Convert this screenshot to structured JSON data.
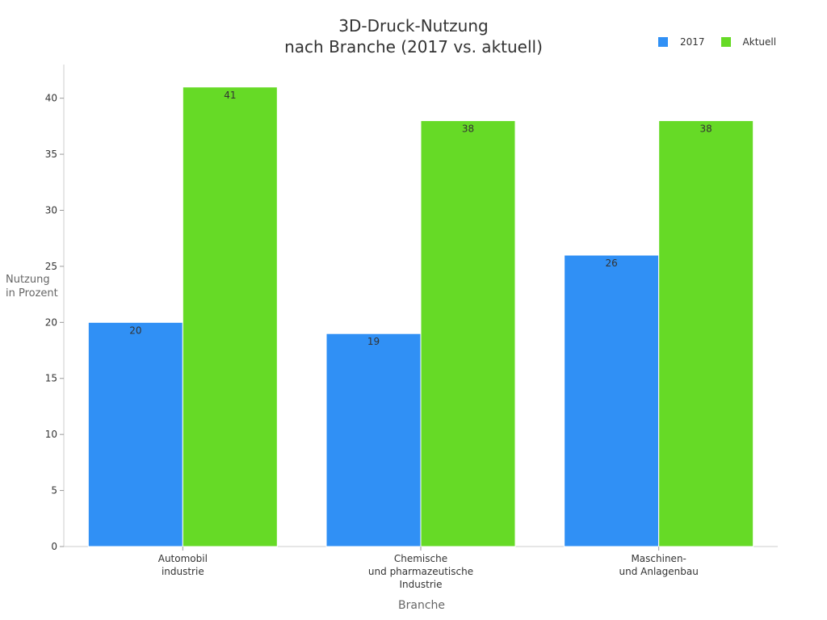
{
  "colors": {
    "series_2017": "#3090f5",
    "series_aktuell": "#66da26",
    "axis": "#cccccc",
    "text": "#333333"
  },
  "chart_data": {
    "type": "bar",
    "title_line1": "3D-Druck-Nutzung",
    "title_line2": "nach Branche (2017 vs. aktuell)",
    "xlabel": "Branche",
    "ylabel_line1": "Nutzung",
    "ylabel_line2": "in Prozent",
    "categories": [
      [
        "Automobil",
        "industrie"
      ],
      [
        "Chemische",
        "und pharmazeutische",
        "Industrie"
      ],
      [
        "Maschinen-",
        "und Anlagenbau"
      ]
    ],
    "series": [
      {
        "name": "2017",
        "values": [
          20,
          19,
          26
        ]
      },
      {
        "name": "Aktuell",
        "values": [
          41,
          38,
          38
        ]
      }
    ],
    "ylim": [
      0,
      43
    ],
    "yticks": [
      0,
      5,
      10,
      15,
      20,
      25,
      30,
      35,
      40
    ],
    "grid": false,
    "legend_position": "top-right",
    "data_labels": true
  }
}
